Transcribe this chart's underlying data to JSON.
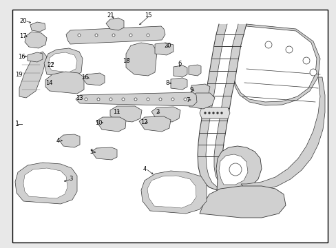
{
  "bg_color": "#ffffff",
  "border_color": "#000000",
  "text_color": "#000000",
  "fig_width": 4.89,
  "fig_height": 3.6,
  "dpi": 100,
  "outer_bg": "#e8e8e8",
  "inner_bg": "#ffffff",
  "border_lw": 1.0,
  "part_fc": "#d0d0d0",
  "part_ec": "#333333",
  "part_lw": 0.5,
  "label_fontsize": 6.0,
  "arrow_lw": 0.5
}
